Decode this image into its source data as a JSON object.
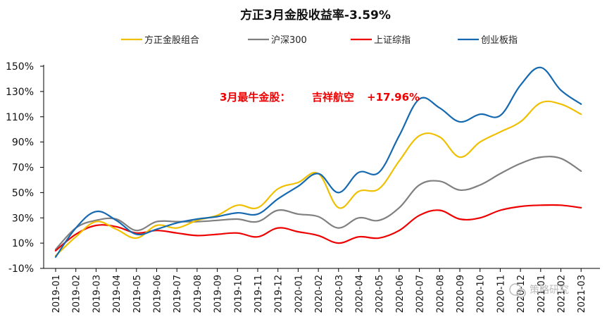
{
  "chart_data": {
    "type": "line",
    "title": "方正3月金股收益率-3.59%",
    "categories": [
      "2019-01",
      "2019-02",
      "2019-03",
      "2019-04",
      "2019-05",
      "2019-06",
      "2019-07",
      "2019-08",
      "2019-09",
      "2019-10",
      "2019-11",
      "2019-12",
      "2020-01",
      "2020-02",
      "2020-03",
      "2020-04",
      "2020-05",
      "2020-06",
      "2020-07",
      "2020-08",
      "2020-09",
      "2020-10",
      "2020-11",
      "2020-12",
      "2021-01",
      "2021-02",
      "2021-03"
    ],
    "yticks": [
      "150%",
      "130%",
      "110%",
      "90%",
      "70%",
      "50%",
      "30%",
      "10%",
      "-10%"
    ],
    "ylim": [
      -10,
      150
    ],
    "grid": false,
    "legend_position": "top",
    "series": [
      {
        "name": "方正金股组合",
        "color": "#f0c000",
        "values": [
          0,
          15,
          27,
          21,
          14,
          24,
          22,
          28,
          32,
          40,
          38,
          53,
          58,
          65,
          38,
          51,
          53,
          75,
          95,
          94,
          78,
          90,
          98,
          106,
          121,
          120,
          112
        ]
      },
      {
        "name": "沪深300",
        "color": "#808080",
        "values": [
          5,
          22,
          28,
          29,
          20,
          27,
          27,
          27,
          28,
          29,
          27,
          36,
          33,
          31,
          22,
          30,
          28,
          38,
          56,
          59,
          52,
          56,
          65,
          73,
          78,
          77,
          67
        ]
      },
      {
        "name": "上证综指",
        "color": "#ee0000",
        "values": [
          4,
          17,
          24,
          23,
          18,
          20,
          18,
          16,
          17,
          18,
          15,
          22,
          19,
          16,
          10,
          15,
          14,
          20,
          32,
          36,
          29,
          30,
          36,
          39,
          40,
          40,
          38
        ]
      },
      {
        "name": "创业板指",
        "color": "#1569b0",
        "values": [
          -1,
          22,
          35,
          28,
          17,
          21,
          26,
          29,
          31,
          34,
          33,
          45,
          55,
          65,
          50,
          66,
          66,
          95,
          124,
          117,
          106,
          112,
          111,
          135,
          149,
          131,
          120
        ]
      }
    ],
    "annotation": {
      "label": "3月最牛金股：",
      "stock": "吉祥航空",
      "value": "+17.96%"
    }
  },
  "watermark": "策略研究"
}
